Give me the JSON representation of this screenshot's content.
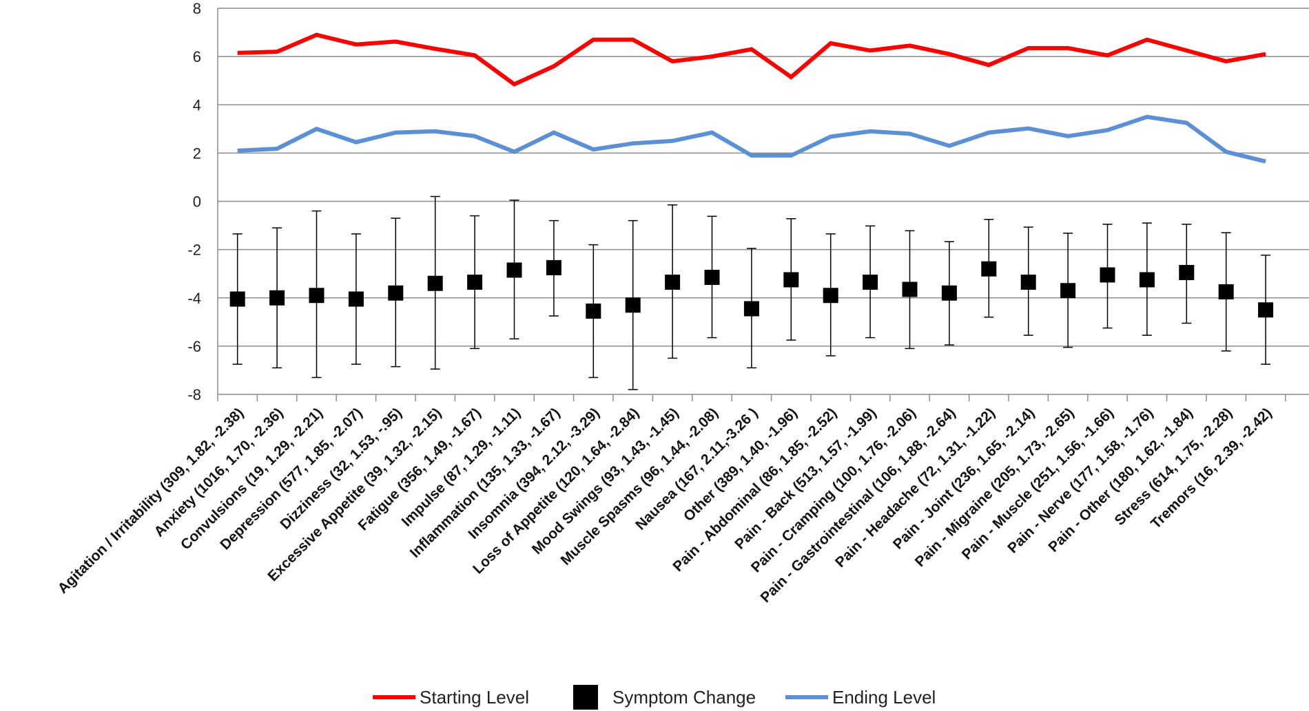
{
  "chart_data": {
    "type": "line",
    "title": "",
    "xlabel": "",
    "ylabel": "",
    "ylim": [
      -8,
      8
    ],
    "yticks": [
      8,
      6,
      4,
      2,
      0,
      -2,
      -4,
      -6,
      -8
    ],
    "grid": "horizontal",
    "legend_position": "bottom",
    "categories": [
      "Agitation / Irritability (309, 1.82, -2.38)",
      "Anxiety (1016, 1.70, -2.36)",
      "Convulsions (19, 1.29, -2.21)",
      "Depression (577, 1.85, -2.07)",
      "Dizziness (32, 1.53, -.95)",
      "Excessive Appetite (39, 1.32, -2.15)",
      "Fatigue (356, 1.49, -1.67)",
      "Impulse (87, 1.29, -1.11)",
      "Inflammation (135, 1.33, -1.67)",
      "Insomnia (394, 2.12, -3.29)",
      "Loss of Appetite (120, 1.64, -2.84)",
      "Mood Swings (93, 1.43, -1.45)",
      "Muscle Spasms (96, 1.44, -2.08)",
      "Nausea (167, 2.11,-3.26 )",
      "Other (389, 1.40, -1.96)",
      "Pain - Abdominal (86, 1.85, -2.52)",
      "Pain - Back (513, 1.57, -1.99)",
      "Pain - Cramping (100, 1.76, -2.06)",
      "Pain - Gastrointestinal (106, 1.88, -2.64)",
      "Pain - Headache (72, 1.31, -1.22)",
      "Pain - Joint (236, 1.65, -2.14)",
      "Pain - Migraine (205, 1.73, -2.65)",
      "Pain - Muscle (251, 1.56, -1.66)",
      "Pain - Nerve (177, 1.58, -1.76)",
      "Pain - Other (180, 1.62, -1.84)",
      "Stress (614, 1.75, -2.28)",
      "Tremors (16, 2.39, -2.42)"
    ],
    "series": [
      {
        "name": "Starting Level",
        "kind": "line",
        "color": "#ff0000",
        "values": [
          6.15,
          6.2,
          6.9,
          6.5,
          6.62,
          6.32,
          6.05,
          4.85,
          5.6,
          6.7,
          6.7,
          5.8,
          6.0,
          6.3,
          5.15,
          6.55,
          6.25,
          6.45,
          6.1,
          5.65,
          6.35,
          6.35,
          6.05,
          6.7,
          6.25,
          5.8,
          6.1
        ]
      },
      {
        "name": "Symptom Change",
        "kind": "marker",
        "color": "#000000",
        "values": [
          -4.05,
          -4.0,
          -3.9,
          -4.05,
          -3.8,
          -3.4,
          -3.35,
          -2.85,
          -2.75,
          -4.55,
          -4.3,
          -3.35,
          -3.15,
          -4.45,
          -3.25,
          -3.9,
          -3.35,
          -3.65,
          -3.8,
          -2.8,
          -3.35,
          -3.7,
          -3.05,
          -3.25,
          -2.95,
          -3.75,
          -4.5
        ],
        "error_upper": [
          -1.35,
          -1.1,
          -0.4,
          -1.35,
          -0.7,
          0.2,
          -0.6,
          0.05,
          -0.8,
          -1.8,
          -0.8,
          -0.15,
          -0.62,
          -1.95,
          -0.72,
          -1.35,
          -1.02,
          -1.22,
          -1.67,
          -0.75,
          -1.07,
          -1.32,
          -0.95,
          -0.9,
          -0.95,
          -1.3,
          -2.23
        ],
        "error_lower": [
          -6.75,
          -6.9,
          -7.3,
          -6.75,
          -6.85,
          -6.95,
          -6.1,
          -5.7,
          -4.75,
          -7.3,
          -7.8,
          -6.5,
          -5.65,
          -6.9,
          -5.75,
          -6.4,
          -5.65,
          -6.1,
          -5.95,
          -4.8,
          -5.55,
          -6.05,
          -5.25,
          -5.55,
          -5.05,
          -6.2,
          -6.75
        ]
      },
      {
        "name": "Ending Level",
        "kind": "line",
        "color": "#5b8fd6",
        "values": [
          2.1,
          2.18,
          3.0,
          2.45,
          2.85,
          2.9,
          2.7,
          2.05,
          2.85,
          2.15,
          2.4,
          2.5,
          2.85,
          1.9,
          1.9,
          2.68,
          2.9,
          2.8,
          2.3,
          2.85,
          3.02,
          2.7,
          2.95,
          3.5,
          3.25,
          2.05,
          1.65
        ]
      }
    ]
  }
}
